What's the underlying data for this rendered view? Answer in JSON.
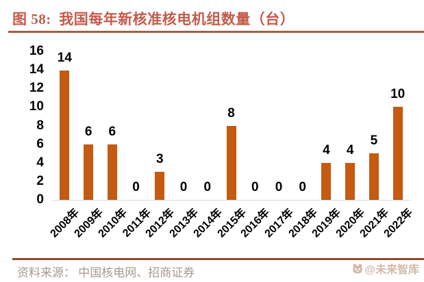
{
  "title": {
    "text": "图 58:  我国每年新核准核电机组数量（台）"
  },
  "chart_data": {
    "type": "bar",
    "title": "我国每年新核准核电机组数量（台）",
    "categories": [
      "2008年",
      "2009年",
      "2010年",
      "2011年",
      "2012年",
      "2013年",
      "2014年",
      "2015年",
      "2016年",
      "2017年",
      "2018年",
      "2019年",
      "2020年",
      "2021年",
      "2022年"
    ],
    "values": [
      14,
      6,
      6,
      0,
      3,
      0,
      0,
      8,
      0,
      0,
      0,
      4,
      4,
      5,
      10
    ],
    "xlabel": "",
    "ylabel": "",
    "ylim": [
      0,
      16
    ],
    "yticks": [
      0,
      2,
      4,
      6,
      8,
      10,
      12,
      14,
      16
    ],
    "grid": false,
    "legend": "none",
    "data_labels": true,
    "bar_color": "#C55A11",
    "axis_line_color": "#D9D9D9"
  },
  "footer": {
    "source_text": "资料来源： 中国核电网、招商证券",
    "watermark_text": "@未来智库"
  },
  "colors": {
    "title_text": "#C25B4B",
    "title_rule": "#A85C38",
    "footer_rule": "#8C4A2E",
    "footer_text": "#A39A8F",
    "watermark": "#C4A28C"
  }
}
